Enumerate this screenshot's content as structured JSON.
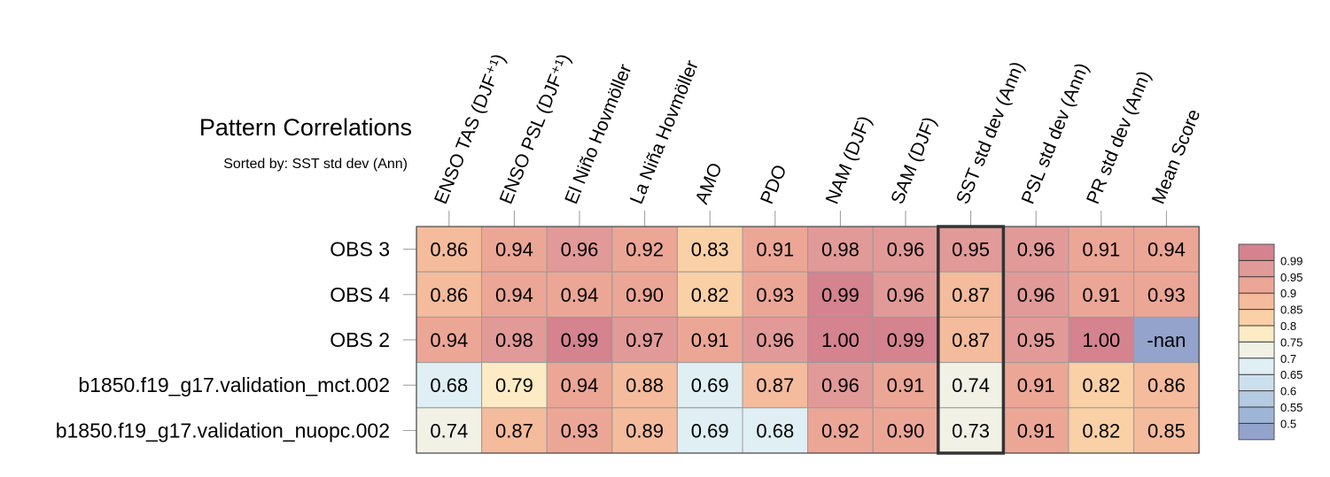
{
  "chart_data": {
    "type": "heatmap",
    "title": "Pattern Correlations",
    "subtitle": "Sorted by: SST std dev (Ann)",
    "columns": [
      "ENSO TAS (DJF⁺¹)",
      "ENSO PSL (DJF⁺¹)",
      "El Niño Hovmöller",
      "La Niña Hovmöller",
      "AMO",
      "PDO",
      "NAM (DJF)",
      "SAM (DJF)",
      "SST std dev (Ann)",
      "PSL std dev (Ann)",
      "PR std dev (Ann)",
      "Mean Score"
    ],
    "rows": [
      "OBS 3",
      "OBS 4",
      "OBS 2",
      "b1850.f19_g17.validation_mct.002",
      "b1850.f19_g17.validation_nuopc.002"
    ],
    "values": [
      [
        "0.86",
        "0.94",
        "0.96",
        "0.92",
        "0.83",
        "0.91",
        "0.98",
        "0.96",
        "0.95",
        "0.96",
        "0.91",
        "0.94"
      ],
      [
        "0.86",
        "0.94",
        "0.94",
        "0.90",
        "0.82",
        "0.93",
        "0.99",
        "0.96",
        "0.87",
        "0.96",
        "0.91",
        "0.93"
      ],
      [
        "0.94",
        "0.98",
        "0.99",
        "0.97",
        "0.91",
        "0.96",
        "1.00",
        "0.99",
        "0.87",
        "0.95",
        "1.00",
        "-nan"
      ],
      [
        "0.68",
        "0.79",
        "0.94",
        "0.88",
        "0.69",
        "0.87",
        "0.96",
        "0.91",
        "0.74",
        "0.91",
        "0.82",
        "0.86"
      ],
      [
        "0.74",
        "0.87",
        "0.93",
        "0.89",
        "0.69",
        "0.68",
        "0.92",
        "0.90",
        "0.73",
        "0.91",
        "0.82",
        "0.85"
      ]
    ],
    "highlighted_column": "SST std dev (Ann)",
    "colorbar": {
      "ticks": [
        "0.99",
        "0.95",
        "0.9",
        "0.85",
        "0.8",
        "0.75",
        "0.7",
        "0.65",
        "0.6",
        "0.55",
        "0.5"
      ],
      "colors": [
        "#d4838f",
        "#e19a98",
        "#eca696",
        "#f4bb9c",
        "#fad0a6",
        "#fdebc5",
        "#f2f1e6",
        "#dfeff4",
        "#cbe0ec",
        "#b4cbe1",
        "#9eb5d6",
        "#94a3cc"
      ],
      "nan_color": "#94a3cc"
    }
  }
}
